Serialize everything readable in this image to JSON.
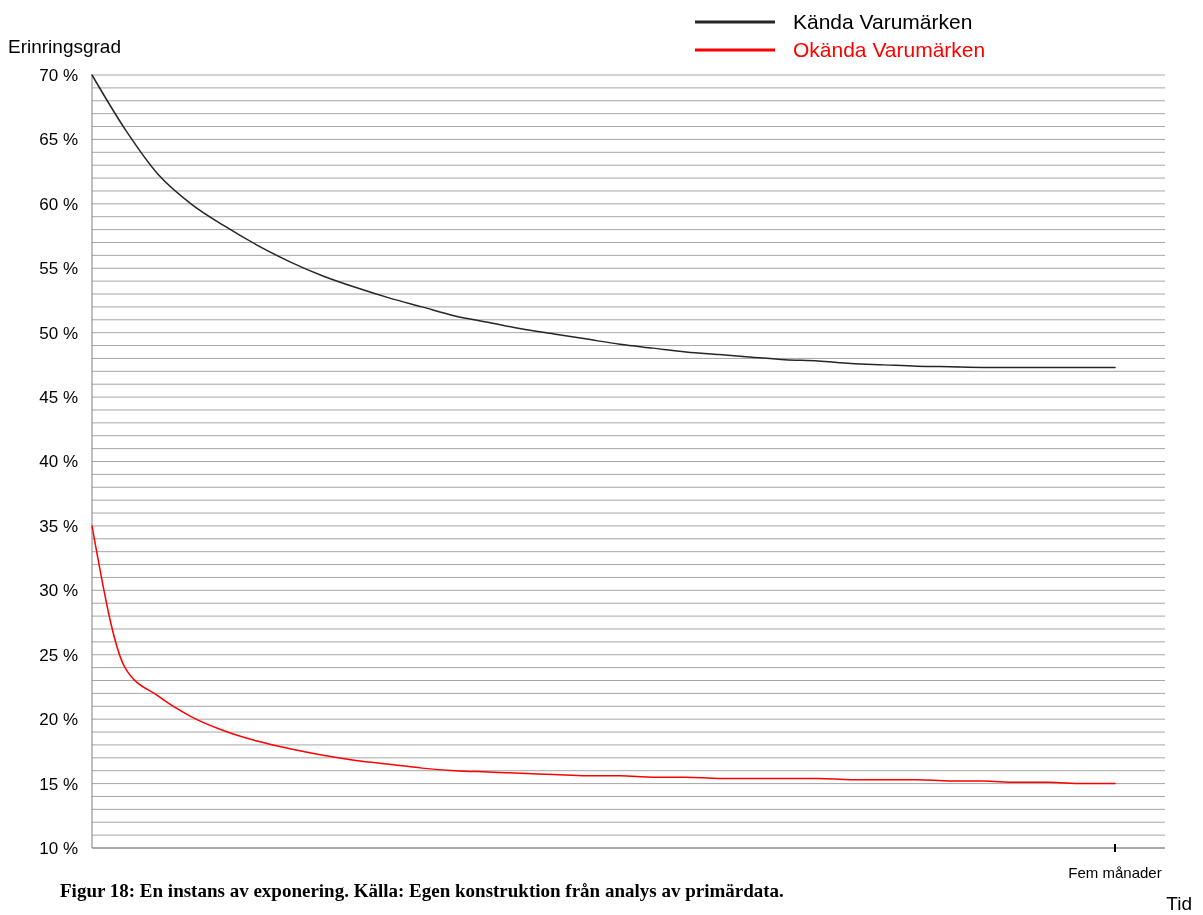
{
  "chart_data": {
    "type": "line",
    "ylabel": "Erinringsgrad",
    "xlabel": "Tid",
    "categories": [
      null,
      null,
      null,
      null,
      null,
      null,
      null,
      null,
      null,
      null,
      null,
      null,
      null,
      null,
      null,
      null,
      null,
      null,
      null,
      null,
      null,
      null,
      null,
      null,
      null,
      null,
      null,
      null,
      null,
      null,
      null,
      "Fem månader"
    ],
    "series": [
      {
        "name": "Kända Varumärken",
        "color": "#262626",
        "values": [
          70,
          65.8,
          62.3,
          60,
          58.3,
          56.8,
          55.5,
          54.4,
          53.5,
          52.7,
          52,
          51.3,
          50.8,
          50.3,
          49.9,
          49.5,
          49.1,
          48.8,
          48.5,
          48.3,
          48.1,
          47.9,
          47.8,
          47.6,
          47.5,
          47.4,
          47.35,
          47.3,
          47.3,
          47.3,
          47.3,
          47.3
        ]
      },
      {
        "name": "Okända Varumärken",
        "color": "#ff0000",
        "values": [
          35,
          24,
          21.8,
          20.2,
          19.1,
          18.3,
          17.7,
          17.2,
          16.8,
          16.5,
          16.2,
          16,
          15.9,
          15.8,
          15.7,
          15.6,
          15.6,
          15.5,
          15.5,
          15.4,
          15.4,
          15.4,
          15.4,
          15.3,
          15.3,
          15.3,
          15.2,
          15.2,
          15.1,
          15.1,
          15,
          15
        ]
      }
    ],
    "ylim": [
      10,
      70
    ],
    "yticks": [
      {
        "value": 10,
        "label": "10 %"
      },
      {
        "value": 11,
        "label": null
      },
      {
        "value": 12,
        "label": null
      },
      {
        "value": 13,
        "label": null
      },
      {
        "value": 14,
        "label": null
      },
      {
        "value": 15,
        "label": "15 %"
      },
      {
        "value": 16,
        "label": null
      },
      {
        "value": 17,
        "label": null
      },
      {
        "value": 18,
        "label": null
      },
      {
        "value": 19,
        "label": null
      },
      {
        "value": 20,
        "label": "20 %"
      },
      {
        "value": 21,
        "label": null
      },
      {
        "value": 22,
        "label": null
      },
      {
        "value": 23,
        "label": null
      },
      {
        "value": 24,
        "label": null
      },
      {
        "value": 25,
        "label": "25 %"
      },
      {
        "value": 26,
        "label": null
      },
      {
        "value": 27,
        "label": null
      },
      {
        "value": 28,
        "label": null
      },
      {
        "value": 29,
        "label": null
      },
      {
        "value": 30,
        "label": "30 %"
      },
      {
        "value": 31,
        "label": null
      },
      {
        "value": 32,
        "label": null
      },
      {
        "value": 33,
        "label": null
      },
      {
        "value": 34,
        "label": null
      },
      {
        "value": 35,
        "label": "35 %"
      },
      {
        "value": 36,
        "label": null
      },
      {
        "value": 37,
        "label": null
      },
      {
        "value": 38,
        "label": null
      },
      {
        "value": 39,
        "label": null
      },
      {
        "value": 40,
        "label": "40 %"
      },
      {
        "value": 41,
        "label": null
      },
      {
        "value": 42,
        "label": null
      },
      {
        "value": 43,
        "label": null
      },
      {
        "value": 44,
        "label": null
      },
      {
        "value": 45,
        "label": "45 %"
      },
      {
        "value": 46,
        "label": null
      },
      {
        "value": 47,
        "label": null
      },
      {
        "value": 48,
        "label": null
      },
      {
        "value": 49,
        "label": null
      },
      {
        "value": 50,
        "label": "50 %"
      },
      {
        "value": 51,
        "label": null
      },
      {
        "value": 52,
        "label": null
      },
      {
        "value": 53,
        "label": null
      },
      {
        "value": 54,
        "label": null
      },
      {
        "value": 55,
        "label": "55 %"
      },
      {
        "value": 56,
        "label": null
      },
      {
        "value": 57,
        "label": null
      },
      {
        "value": 58,
        "label": null
      },
      {
        "value": 59,
        "label": null
      },
      {
        "value": 60,
        "label": "60 %"
      },
      {
        "value": 61,
        "label": null
      },
      {
        "value": 62,
        "label": null
      },
      {
        "value": 63,
        "label": null
      },
      {
        "value": 64,
        "label": null
      },
      {
        "value": 65,
        "label": "65 %"
      },
      {
        "value": 66,
        "label": null
      },
      {
        "value": 67,
        "label": null
      },
      {
        "value": 68,
        "label": null
      },
      {
        "value": 69,
        "label": null
      },
      {
        "value": 70,
        "label": "70 %"
      }
    ],
    "grid": "y",
    "legend": "top right",
    "line_style": "solid",
    "annotations": [
      "Figur 18: En instans av exponering. Källa: Egen konstruktion från analys av primärdata."
    ]
  }
}
